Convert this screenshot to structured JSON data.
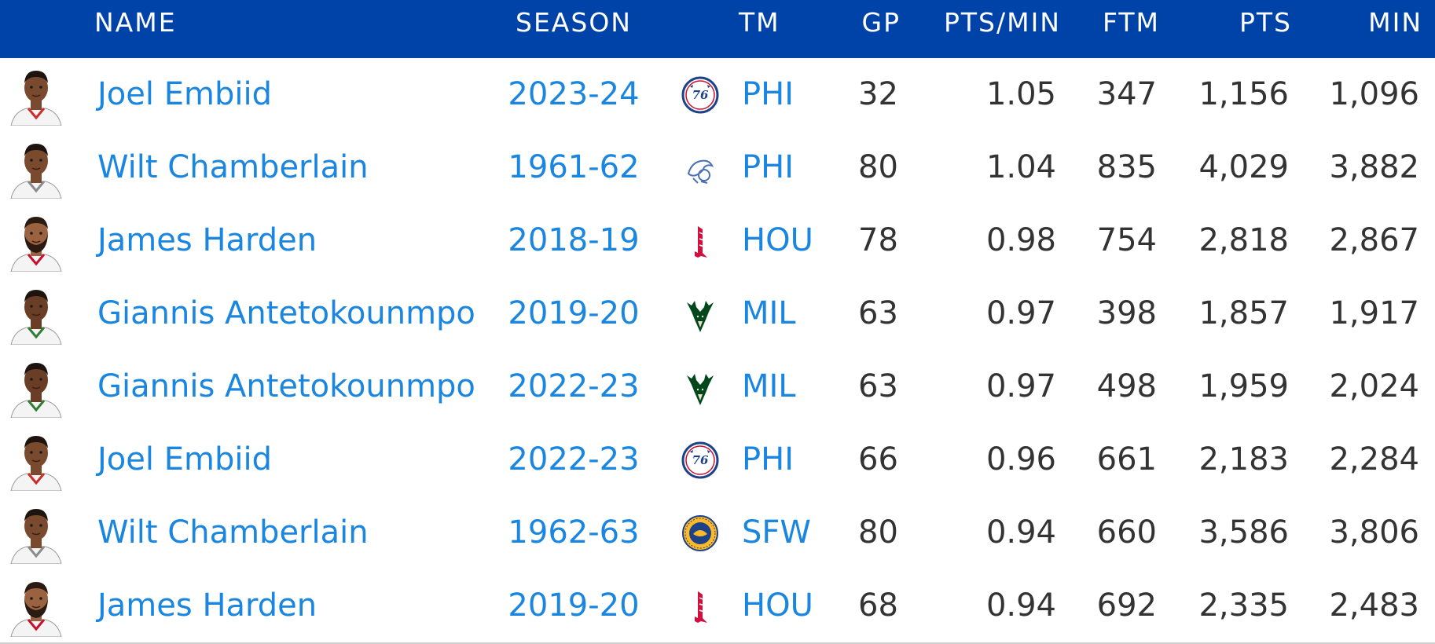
{
  "header": {
    "name": "NAME",
    "season": "SEASON",
    "tm": "TM",
    "gp": "GP",
    "pts_min": "PTS/MIN",
    "ftm": "FTM",
    "pts": "PTS",
    "min": "MIN"
  },
  "colors": {
    "header_bg": "#0043a8",
    "link": "#1a86e0",
    "text": "#333333",
    "divider": "#cfcfcf"
  },
  "rows": [
    {
      "name": "Joel Embiid",
      "season": "2023-24",
      "tm": "PHI",
      "logo": "76ers-logo-icon",
      "gp": "32",
      "pts_min": "1.05",
      "ftm": "347",
      "pts": "1,156",
      "min": "1,096"
    },
    {
      "name": "Wilt Chamberlain",
      "season": "1961-62",
      "tm": "PHI",
      "logo": "warriors-vintage-logo-icon",
      "gp": "80",
      "pts_min": "1.04",
      "ftm": "835",
      "pts": "4,029",
      "min": "3,882"
    },
    {
      "name": "James Harden",
      "season": "2018-19",
      "tm": "HOU",
      "logo": "rockets-logo-icon",
      "gp": "78",
      "pts_min": "0.98",
      "ftm": "754",
      "pts": "2,818",
      "min": "2,867"
    },
    {
      "name": "Giannis Antetokounmpo",
      "season": "2019-20",
      "tm": "MIL",
      "logo": "bucks-logo-icon",
      "gp": "63",
      "pts_min": "0.97",
      "ftm": "398",
      "pts": "1,857",
      "min": "1,917"
    },
    {
      "name": "Giannis Antetokounmpo",
      "season": "2022-23",
      "tm": "MIL",
      "logo": "bucks-logo-icon",
      "gp": "63",
      "pts_min": "0.97",
      "ftm": "498",
      "pts": "1,959",
      "min": "2,024"
    },
    {
      "name": "Joel Embiid",
      "season": "2022-23",
      "tm": "PHI",
      "logo": "76ers-logo-icon",
      "gp": "66",
      "pts_min": "0.96",
      "ftm": "661",
      "pts": "2,183",
      "min": "2,284"
    },
    {
      "name": "Wilt Chamberlain",
      "season": "1962-63",
      "tm": "SFW",
      "logo": "sf-warriors-logo-icon",
      "gp": "80",
      "pts_min": "0.94",
      "ftm": "660",
      "pts": "3,586",
      "min": "3,806"
    },
    {
      "name": "James Harden",
      "season": "2019-20",
      "tm": "HOU",
      "logo": "rockets-logo-icon",
      "gp": "68",
      "pts_min": "0.94",
      "ftm": "692",
      "pts": "2,335",
      "min": "2,483"
    }
  ]
}
